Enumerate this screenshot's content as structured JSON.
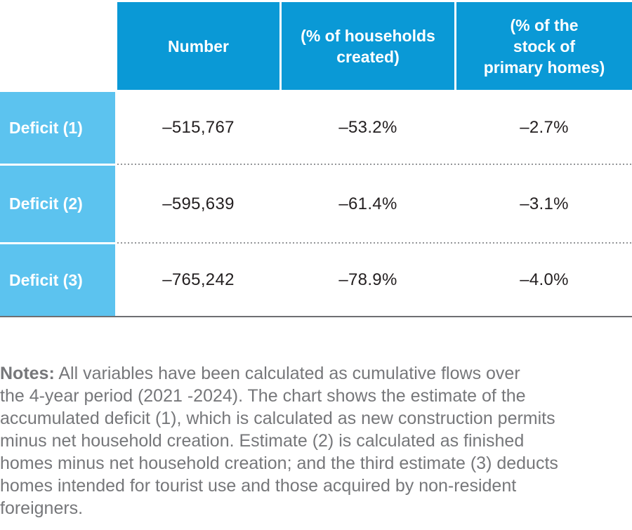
{
  "table": {
    "columns": [
      [
        "Number"
      ],
      [
        "(% of households",
        "created)"
      ],
      [
        "(% of the",
        "stock of",
        "primary homes)"
      ]
    ],
    "rows": [
      {
        "label": "Deficit (1)",
        "values": [
          "–515,767",
          "–53.2%",
          "–2.7%"
        ]
      },
      {
        "label": "Deficit (2)",
        "values": [
          "–595,639",
          "–61.4%",
          "–3.1%"
        ]
      },
      {
        "label": "Deficit (3)",
        "values": [
          "–765,242",
          "–78.9%",
          "–4.0%"
        ]
      }
    ]
  },
  "chart_data": {
    "type": "table",
    "columns": [
      "",
      "Number",
      "(% of households created)",
      "(% of the stock of primary homes)"
    ],
    "rows": [
      [
        "Deficit (1)",
        -515767,
        -53.2,
        -2.7
      ],
      [
        "Deficit (2)",
        -595639,
        -61.4,
        -3.1
      ],
      [
        "Deficit (3)",
        -765242,
        -78.9,
        -4.0
      ]
    ],
    "notes": "Notes: All variables have been calculated as cumulative flows over the 4-year period (2021 -2024). The chart shows the estimate of the accumulated deficit (1), which is calculated as new construction permits minus net household creation. Estimate (2) is calculated as finished homes minus net household creation; and the third estimate (3) deducts homes intended for tourist use and those acquired by non-resident foreigners."
  },
  "notes": {
    "label": "Notes:",
    "lines": [
      "All variables have been calculated as cumulative flows over",
      "the 4-year period (2021 -2024). The chart shows the estimate of the",
      "accumulated deficit (1), which is calculated as new construction permits",
      "minus net household creation. Estimate (2) is calculated as finished",
      "homes minus net household creation; and the third estimate (3) deducts",
      "homes intended for tourist use and those acquired by non-resident",
      "foreigners."
    ]
  },
  "colors": {
    "header_blue": "#0a99d6",
    "row_header_blue": "#5cc3ef",
    "value_text": "#231f20",
    "notes_text": "#76777a",
    "dotted_separator": "#939598",
    "bottom_rule": "#6e6f72"
  }
}
